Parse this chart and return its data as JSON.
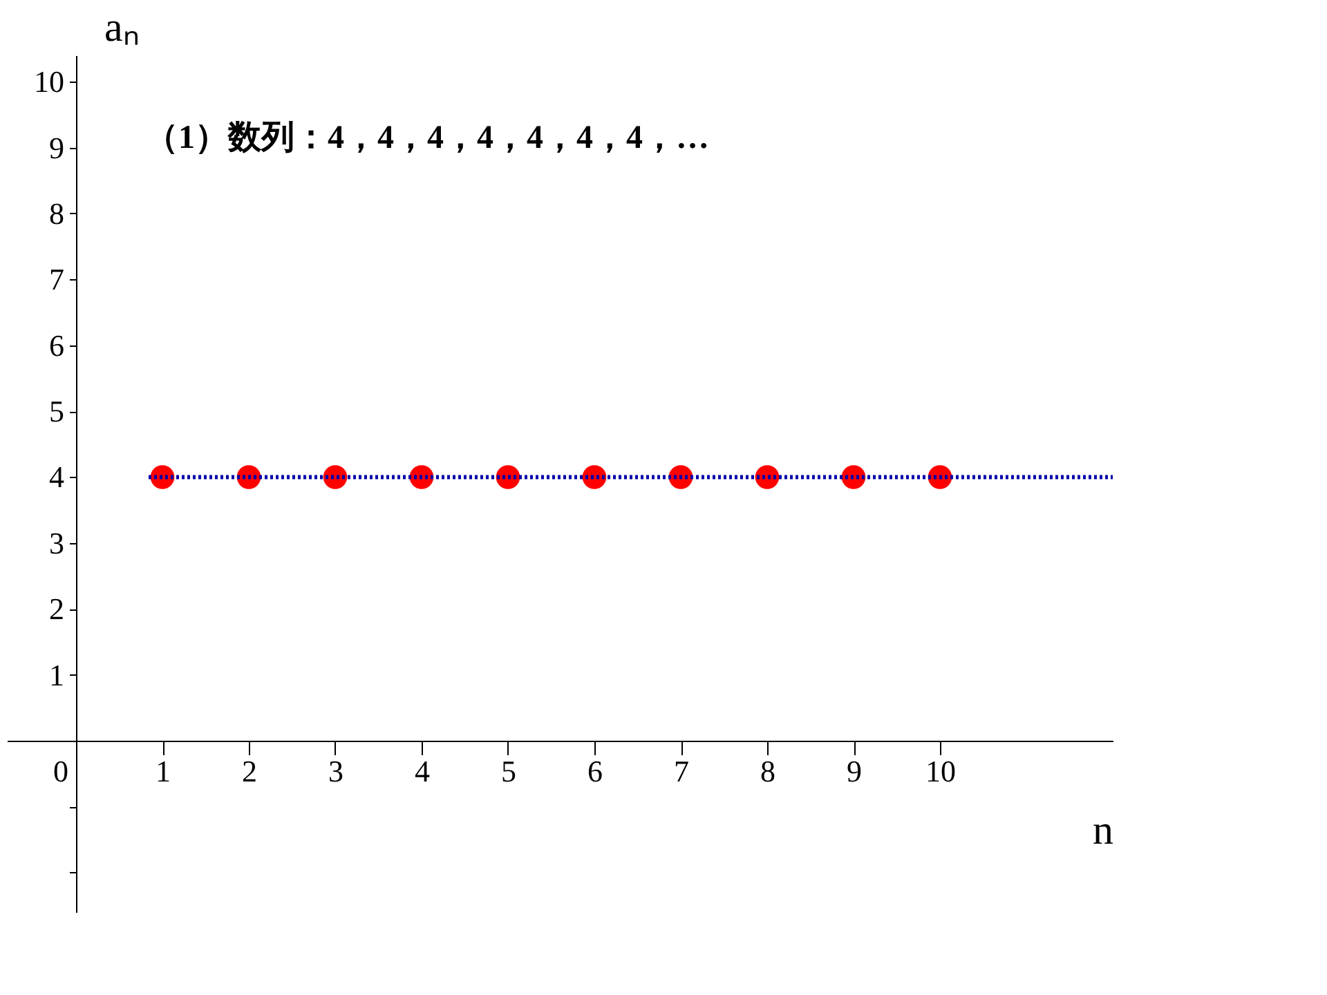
{
  "chart_data": {
    "type": "scatter",
    "annotations": [
      "（1）数列：4，4，4，4，4，4，4，…"
    ],
    "xlabel": "n",
    "ylabel": "aₙ",
    "x": [
      1,
      2,
      3,
      4,
      5,
      6,
      7,
      8,
      9,
      10
    ],
    "series": [
      {
        "color": "#ff0000",
        "values": [
          4,
          4,
          4,
          4,
          4,
          4,
          4,
          4,
          4,
          4
        ]
      }
    ],
    "ref_lines": [
      {
        "axis": "y",
        "value": 4,
        "color": "#0000aa",
        "line_style": "dotted"
      }
    ],
    "xlim": [
      -0.8,
      12
    ],
    "ylim": [
      -2.6,
      10.4
    ],
    "xticks": [
      0,
      1,
      2,
      3,
      4,
      5,
      6,
      7,
      8,
      9,
      10
    ],
    "yticks": [
      {
        "value": -2,
        "label": null
      },
      {
        "value": -1,
        "label": null
      },
      1,
      2,
      3,
      4,
      5,
      6,
      7,
      8,
      9,
      10
    ],
    "grid": false,
    "marker": "circle"
  }
}
